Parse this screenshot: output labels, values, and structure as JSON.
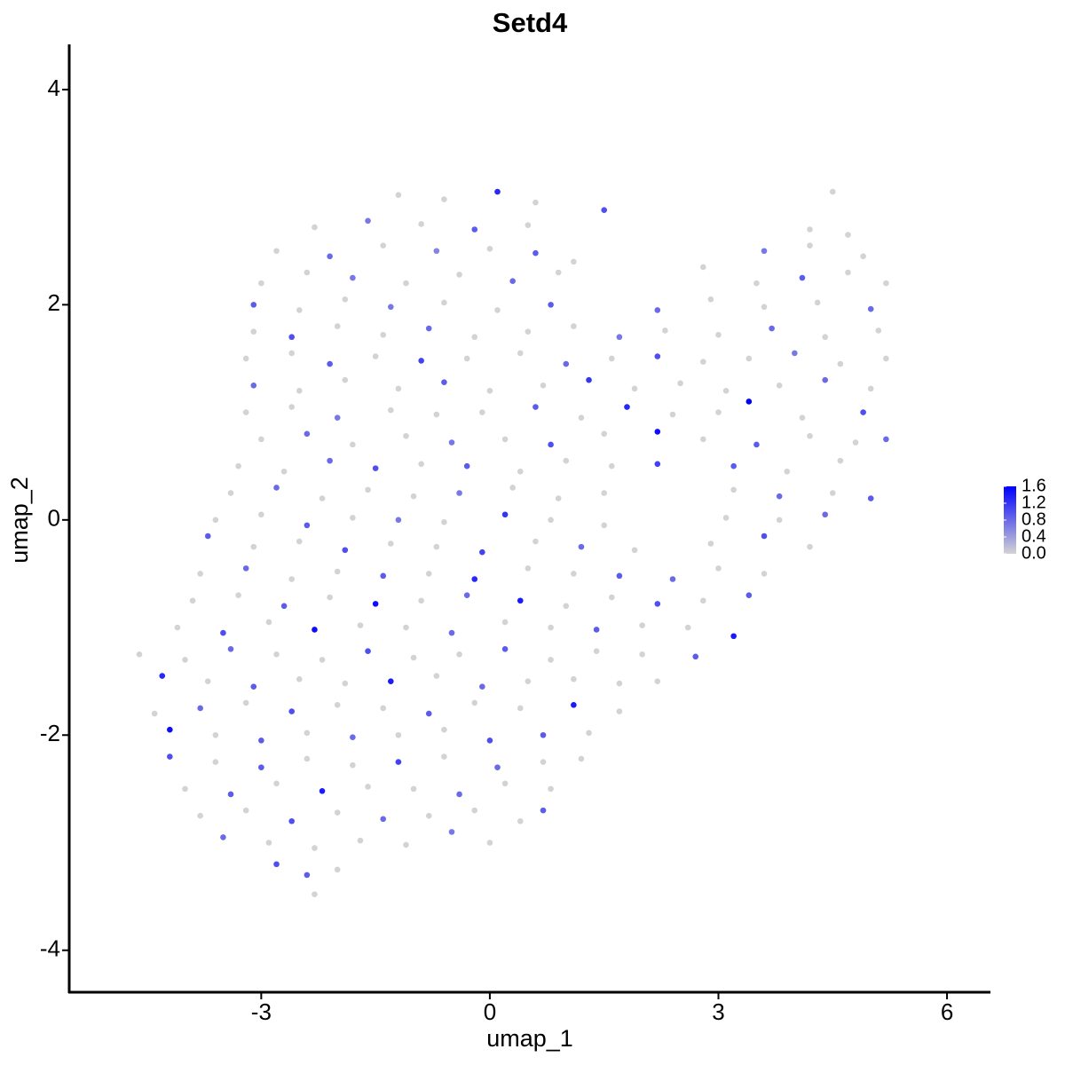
{
  "chart_data": {
    "type": "scatter",
    "title": "Setd4",
    "xlabel": "umap_1",
    "ylabel": "umap_2",
    "xlim": [
      -5.52,
      6.57
    ],
    "ylim": [
      -4.39,
      4.42
    ],
    "xticks": [
      -3,
      0,
      3,
      6
    ],
    "yticks": [
      -4,
      -2,
      0,
      2,
      4
    ],
    "colors": [
      "#d3d3d3",
      "#0000ff"
    ],
    "color_lim": [
      0,
      1.6
    ],
    "color_ticks": [
      {
        "value": 0,
        "label": "0.0"
      },
      0.4,
      0.8,
      1.2,
      1.6
    ],
    "x": [
      -1.2,
      -0.6,
      0.1,
      0.6,
      4.5,
      -2.3,
      -1.6,
      -0.9,
      -0.2,
      0.5,
      1.5,
      4.2,
      4.7,
      -2.8,
      -2.1,
      -1.4,
      -0.7,
      0.0,
      0.6,
      1.1,
      3.6,
      4.2,
      4.9,
      -3.0,
      -2.4,
      -1.8,
      -1.1,
      -0.4,
      0.3,
      0.9,
      2.8,
      3.5,
      4.1,
      4.7,
      5.2,
      -3.1,
      -2.5,
      -1.9,
      -1.3,
      -0.6,
      0.1,
      0.8,
      2.2,
      2.9,
      3.6,
      4.3,
      5.0,
      -3.1,
      -2.6,
      -2.0,
      -1.4,
      -0.8,
      -0.2,
      0.5,
      1.1,
      1.7,
      2.3,
      3.0,
      3.7,
      4.4,
      5.1,
      -3.2,
      -2.6,
      -2.1,
      -1.5,
      -0.9,
      -0.3,
      0.4,
      1.0,
      1.6,
      2.2,
      2.8,
      3.4,
      4.0,
      4.6,
      5.2,
      -3.1,
      -2.5,
      -1.9,
      -1.2,
      -0.6,
      0.0,
      0.7,
      1.3,
      1.9,
      2.5,
      3.1,
      3.8,
      4.4,
      5.0,
      -3.2,
      -2.6,
      -2.0,
      -1.3,
      -0.7,
      -0.1,
      0.6,
      1.2,
      1.8,
      2.4,
      3.0,
      3.4,
      4.1,
      4.9,
      -3.0,
      -2.4,
      -1.8,
      -1.1,
      -0.5,
      0.2,
      0.8,
      1.5,
      2.2,
      2.8,
      3.5,
      4.2,
      4.8,
      5.2,
      -3.3,
      -2.7,
      -2.1,
      -1.5,
      -0.9,
      -0.3,
      0.4,
      1.0,
      1.6,
      2.2,
      3.2,
      3.9,
      4.6,
      -3.4,
      -2.8,
      -2.2,
      -1.6,
      -1.0,
      -0.4,
      0.3,
      0.9,
      1.5,
      3.2,
      3.8,
      4.5,
      5.0,
      -3.6,
      -3.0,
      -2.4,
      -1.8,
      -1.2,
      -0.6,
      0.2,
      0.8,
      1.5,
      3.1,
      3.8,
      4.4,
      -3.7,
      -3.1,
      -2.5,
      -1.9,
      -1.3,
      -0.7,
      -0.1,
      0.6,
      1.2,
      1.9,
      2.9,
      3.6,
      4.2,
      -3.8,
      -3.2,
      -2.6,
      -2.0,
      -1.4,
      -0.8,
      -0.2,
      0.5,
      1.1,
      1.7,
      2.4,
      3.0,
      3.6,
      -3.9,
      -3.3,
      -2.7,
      -2.1,
      -1.5,
      -0.9,
      -0.3,
      0.4,
      1.0,
      1.6,
      2.2,
      2.8,
      3.4,
      -4.1,
      -3.5,
      -2.9,
      -2.3,
      -1.7,
      -1.1,
      -0.5,
      0.2,
      0.8,
      1.4,
      2.0,
      2.6,
      3.2,
      -4.6,
      -4.0,
      -3.4,
      -2.8,
      -2.2,
      -1.6,
      -1.0,
      -0.4,
      0.2,
      0.8,
      1.4,
      2.0,
      2.7,
      -4.3,
      -3.7,
      -3.1,
      -2.5,
      -1.9,
      -1.3,
      -0.7,
      -0.1,
      0.5,
      1.1,
      1.7,
      2.2,
      -4.4,
      -3.8,
      -3.2,
      -2.6,
      -2.0,
      -1.4,
      -0.8,
      -0.2,
      0.4,
      1.1,
      1.7,
      -4.2,
      -3.6,
      -3.0,
      -2.4,
      -1.8,
      -1.2,
      -0.6,
      0.0,
      0.7,
      1.3,
      -4.2,
      -3.6,
      -3.0,
      -2.4,
      -1.8,
      -1.2,
      -0.6,
      0.1,
      0.7,
      1.2,
      -4.0,
      -3.4,
      -2.8,
      -2.2,
      -1.6,
      -1.0,
      -0.4,
      0.2,
      0.8,
      -3.8,
      -3.2,
      -2.6,
      -2.0,
      -1.4,
      -0.8,
      -0.2,
      0.4,
      0.7,
      -3.5,
      -2.9,
      -2.3,
      -1.7,
      -1.1,
      -0.5,
      0.0,
      -2.8,
      -2.4,
      -2.0,
      -2.3
    ],
    "y": [
      3.02,
      2.98,
      3.05,
      2.95,
      3.05,
      2.72,
      2.78,
      2.75,
      2.7,
      2.74,
      2.88,
      2.7,
      2.65,
      2.5,
      2.45,
      2.55,
      2.5,
      2.52,
      2.48,
      2.4,
      2.5,
      2.55,
      2.45,
      2.2,
      2.3,
      2.25,
      2.2,
      2.28,
      2.22,
      2.3,
      2.35,
      2.2,
      2.25,
      2.3,
      2.2,
      2.0,
      1.95,
      2.05,
      1.98,
      2.02,
      1.95,
      2.0,
      1.95,
      2.05,
      1.98,
      2.02,
      1.96,
      1.75,
      1.7,
      1.8,
      1.72,
      1.78,
      1.7,
      1.75,
      1.8,
      1.7,
      1.76,
      1.72,
      1.78,
      1.7,
      1.76,
      1.5,
      1.55,
      1.45,
      1.52,
      1.48,
      1.5,
      1.55,
      1.45,
      1.5,
      1.52,
      1.47,
      1.5,
      1.55,
      1.45,
      1.5,
      1.25,
      1.2,
      1.3,
      1.22,
      1.28,
      1.2,
      1.25,
      1.3,
      1.22,
      1.27,
      1.2,
      1.25,
      1.3,
      1.22,
      1.0,
      1.05,
      0.95,
      1.02,
      0.98,
      1.0,
      1.05,
      0.95,
      1.05,
      0.98,
      1.0,
      1.1,
      0.95,
      1.0,
      0.75,
      0.8,
      0.7,
      0.78,
      0.72,
      0.75,
      0.7,
      0.8,
      0.82,
      0.75,
      0.7,
      0.78,
      0.72,
      0.75,
      0.5,
      0.45,
      0.55,
      0.48,
      0.52,
      0.5,
      0.45,
      0.55,
      0.5,
      0.52,
      0.5,
      0.45,
      0.55,
      0.25,
      0.3,
      0.2,
      0.28,
      0.22,
      0.25,
      0.3,
      0.2,
      0.25,
      0.28,
      0.22,
      0.25,
      0.2,
      0.0,
      0.05,
      -0.05,
      0.02,
      0.0,
      -0.02,
      0.05,
      0.0,
      -0.05,
      0.02,
      0.0,
      0.05,
      -0.15,
      -0.25,
      -0.2,
      -0.28,
      -0.22,
      -0.25,
      -0.3,
      -0.2,
      -0.25,
      -0.28,
      -0.22,
      -0.15,
      -0.25,
      -0.5,
      -0.45,
      -0.55,
      -0.48,
      -0.52,
      -0.5,
      -0.55,
      -0.45,
      -0.5,
      -0.52,
      -0.55,
      -0.45,
      -0.5,
      -0.75,
      -0.7,
      -0.8,
      -0.72,
      -0.78,
      -0.75,
      -0.7,
      -0.75,
      -0.8,
      -0.72,
      -0.78,
      -0.75,
      -0.7,
      -1.0,
      -1.05,
      -0.95,
      -1.02,
      -0.98,
      -1.0,
      -1.05,
      -0.95,
      -1.0,
      -1.02,
      -0.98,
      -1.0,
      -1.08,
      -1.25,
      -1.3,
      -1.2,
      -1.25,
      -1.3,
      -1.22,
      -1.28,
      -1.25,
      -1.2,
      -1.3,
      -1.22,
      -1.25,
      -1.27,
      -1.45,
      -1.5,
      -1.55,
      -1.48,
      -1.52,
      -1.5,
      -1.45,
      -1.55,
      -1.5,
      -1.48,
      -1.52,
      -1.5,
      -1.8,
      -1.75,
      -1.7,
      -1.78,
      -1.72,
      -1.75,
      -1.8,
      -1.7,
      -1.75,
      -1.72,
      -1.78,
      -1.95,
      -2.0,
      -2.05,
      -1.98,
      -2.02,
      -2.0,
      -1.95,
      -2.05,
      -2.0,
      -1.98,
      -2.2,
      -2.25,
      -2.3,
      -2.22,
      -2.28,
      -2.25,
      -2.2,
      -2.3,
      -2.25,
      -2.22,
      -2.5,
      -2.55,
      -2.45,
      -2.52,
      -2.48,
      -2.5,
      -2.55,
      -2.45,
      -2.5,
      -2.75,
      -2.7,
      -2.8,
      -2.72,
      -2.78,
      -2.75,
      -2.7,
      -2.8,
      -2.7,
      -2.95,
      -3.0,
      -3.05,
      -2.98,
      -3.02,
      -2.9,
      -3.0,
      -3.2,
      -3.3,
      -3.25,
      -3.48
    ],
    "values": [
      0,
      0,
      1.3,
      0,
      0,
      0,
      0.7,
      0,
      0.9,
      0,
      1.0,
      0,
      0,
      0,
      0.8,
      0,
      0.6,
      0,
      0.9,
      0,
      0.7,
      0,
      0,
      0,
      0,
      0.7,
      0,
      0,
      0.8,
      0,
      0,
      0,
      0.9,
      0,
      0,
      0.9,
      0,
      0,
      0.7,
      0,
      0,
      0.9,
      0.8,
      0,
      0,
      0,
      0.8,
      0,
      1.0,
      0,
      0,
      0.8,
      0,
      0,
      0,
      0.7,
      0,
      0,
      0.8,
      0,
      0,
      0,
      0,
      0.9,
      0,
      1.1,
      0,
      0,
      0.8,
      0,
      1.0,
      0,
      0,
      0.7,
      0,
      0,
      0.8,
      0,
      0,
      0,
      0.9,
      0,
      0,
      1.2,
      0,
      0,
      0,
      0,
      0.8,
      0,
      0,
      0,
      0.7,
      0,
      0,
      0,
      0.9,
      0,
      1.3,
      0,
      0,
      1.65,
      0,
      1.0,
      0,
      0.8,
      0,
      0,
      0.7,
      0,
      1.0,
      0,
      1.5,
      0,
      0.9,
      0,
      0,
      0.8,
      0,
      0,
      0.8,
      1.0,
      0,
      0.9,
      0,
      0,
      0,
      1.1,
      0.9,
      0,
      0,
      0,
      0.8,
      0,
      0,
      0,
      0.7,
      0,
      0,
      0,
      0,
      0.8,
      0,
      0.9,
      0,
      0,
      0.9,
      0,
      0.7,
      0,
      1.2,
      0,
      0,
      0,
      0,
      0.8,
      0.9,
      0,
      0,
      1.0,
      0,
      0,
      1.1,
      0,
      0.8,
      0,
      0,
      1.0,
      0,
      0,
      0.8,
      0,
      0,
      0.9,
      0,
      1.3,
      0,
      0,
      0.9,
      0.8,
      0,
      0,
      0,
      0,
      0.9,
      0,
      1.5,
      0,
      0.8,
      1.4,
      0,
      0,
      1.0,
      0,
      0.9,
      0,
      1.0,
      0,
      1.5,
      0,
      0,
      0.8,
      0,
      0,
      0.9,
      0,
      0,
      1.4,
      0,
      0,
      0.8,
      0,
      0,
      1.0,
      0,
      0,
      0.9,
      0,
      0,
      0,
      0.9,
      1.3,
      0,
      0.9,
      0,
      0,
      1.4,
      0,
      0.8,
      0,
      0,
      0,
      0,
      0,
      0.8,
      0,
      1.0,
      0,
      0,
      0.9,
      0,
      0,
      1.4,
      0,
      1.5,
      0,
      0.9,
      0,
      0.8,
      0,
      0,
      1.0,
      0.9,
      0,
      1.0,
      0,
      0.9,
      0,
      0,
      1.1,
      0,
      0.8,
      0,
      0,
      0,
      0.9,
      0,
      1.4,
      0,
      0,
      0.8,
      0,
      0,
      0,
      0,
      1.0,
      0,
      0.8,
      0,
      0,
      0,
      0.9,
      0.8,
      0,
      0,
      0,
      0,
      0.7,
      0,
      1.0,
      0.9,
      0,
      0
    ]
  }
}
